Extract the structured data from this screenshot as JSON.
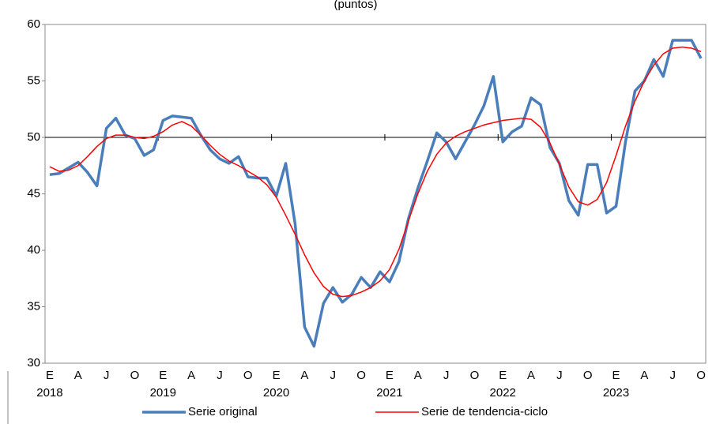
{
  "chart_data": {
    "type": "line",
    "title": "(puntos)",
    "categories": [
      "E",
      null,
      null,
      "A",
      null,
      null,
      "J",
      null,
      null,
      "O",
      null,
      null,
      "E",
      null,
      null,
      "A",
      null,
      null,
      "J",
      null,
      null,
      "O",
      null,
      null,
      "E",
      null,
      null,
      "A",
      null,
      null,
      "J",
      null,
      null,
      "O",
      null,
      null,
      "E",
      null,
      null,
      "A",
      null,
      null,
      "J",
      null,
      null,
      "O",
      null,
      null,
      "E",
      null,
      null,
      "A",
      null,
      null,
      "J",
      null,
      null,
      "O",
      null,
      null,
      "E",
      null,
      null,
      "A",
      null,
      null,
      "J",
      null,
      null,
      "O"
    ],
    "years": [
      "2018",
      null,
      null,
      null,
      null,
      null,
      null,
      null,
      null,
      null,
      null,
      null,
      "2019",
      null,
      null,
      null,
      null,
      null,
      null,
      null,
      null,
      null,
      null,
      null,
      "2020",
      null,
      null,
      null,
      null,
      null,
      null,
      null,
      null,
      null,
      null,
      null,
      "2021",
      null,
      null,
      null,
      null,
      null,
      null,
      null,
      null,
      null,
      null,
      null,
      "2022",
      null,
      null,
      null,
      null,
      null,
      null,
      null,
      null,
      null,
      null,
      null,
      "2023",
      null,
      null,
      null,
      null,
      null,
      null,
      null,
      null,
      null
    ],
    "series": [
      {
        "name": "Serie original",
        "color": "#4a7ebb",
        "values": [
          46.7,
          46.8,
          47.3,
          47.8,
          46.9,
          45.7,
          50.8,
          51.7,
          50.2,
          49.9,
          48.4,
          48.9,
          51.5,
          51.9,
          51.8,
          51.7,
          50.2,
          48.9,
          48.1,
          47.7,
          48.3,
          46.5,
          46.4,
          46.4,
          44.8,
          47.7,
          42.3,
          33.2,
          31.5,
          35.3,
          36.7,
          35.4,
          36.1,
          37.6,
          36.7,
          38.1,
          37.2,
          39.0,
          42.8,
          45.5,
          47.9,
          50.4,
          49.6,
          48.1,
          49.6,
          51.1,
          52.8,
          55.4,
          49.6,
          50.5,
          51.0,
          53.5,
          52.9,
          49.1,
          47.7,
          44.4,
          43.1,
          47.6,
          47.6,
          43.3,
          43.9,
          49.6,
          54.1,
          55.0,
          56.9,
          55.4,
          58.6,
          58.6,
          58.6,
          57.0
        ]
      },
      {
        "name": "Serie de tendencia-ciclo",
        "color": "#ff0000",
        "values": [
          47.4,
          47.0,
          47.1,
          47.5,
          48.3,
          49.2,
          49.9,
          50.2,
          50.2,
          50.0,
          49.9,
          50.1,
          50.5,
          51.1,
          51.4,
          51.0,
          50.2,
          49.3,
          48.5,
          47.9,
          47.5,
          47.0,
          46.5,
          45.8,
          44.7,
          43.1,
          41.4,
          39.6,
          38.0,
          36.8,
          36.1,
          35.9,
          36.0,
          36.3,
          36.7,
          37.3,
          38.3,
          40.1,
          42.6,
          45.0,
          47.0,
          48.5,
          49.5,
          50.1,
          50.5,
          50.8,
          51.1,
          51.3,
          51.5,
          51.6,
          51.7,
          51.6,
          50.9,
          49.5,
          47.6,
          45.6,
          44.3,
          44.0,
          44.5,
          46.0,
          48.4,
          51.0,
          53.2,
          55.0,
          56.4,
          57.4,
          57.9,
          58.0,
          57.9,
          57.6
        ]
      }
    ],
    "ylim": [
      30,
      60
    ],
    "yticks": [
      30,
      35,
      40,
      45,
      50,
      55,
      60
    ],
    "x_axis_crossing": 50,
    "legend": "bottom"
  }
}
